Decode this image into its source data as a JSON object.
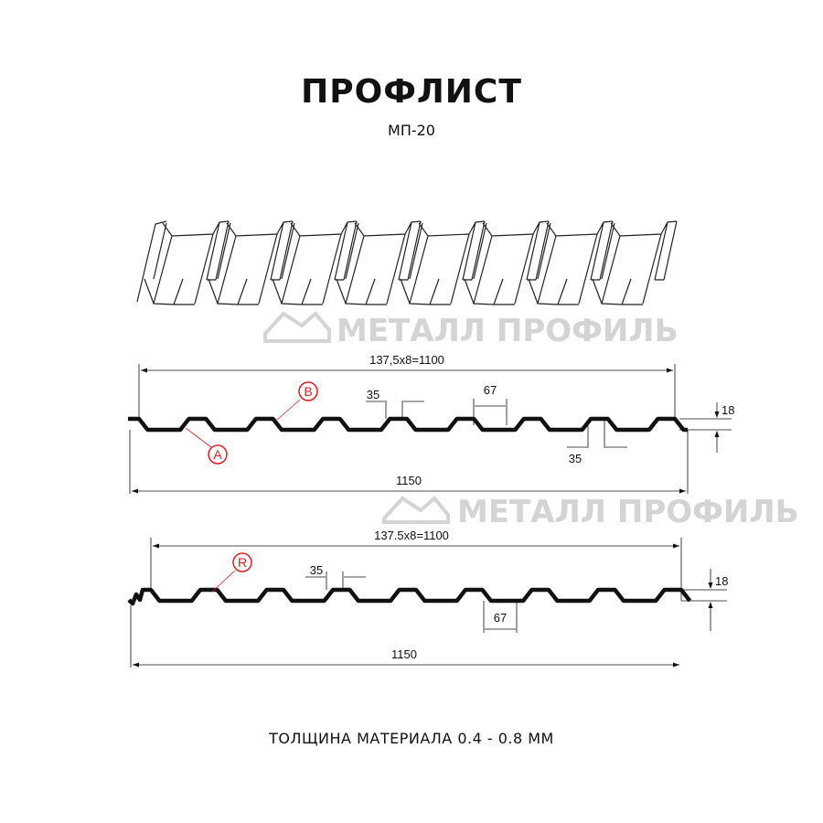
{
  "header": {
    "title": "ПРОФЛИСТ",
    "subtitle": "МП-20"
  },
  "watermark": {
    "text": "МЕТАЛЛ ПРОФИЛЬ"
  },
  "profile_a": {
    "pitch_label": "137,5x8=1100",
    "width_label": "1150",
    "height_label": "18",
    "top_width_label": "35",
    "bottom_width_label": "67",
    "top_width_label_2": "35",
    "markers": [
      "B",
      "A"
    ]
  },
  "profile_r": {
    "pitch_label": "137.5x8=1100",
    "width_label": "1150",
    "height_label": "18",
    "top_width_label": "35",
    "bottom_width_label": "67",
    "markers": [
      "R"
    ]
  },
  "footer": {
    "text": "ТОЛЩИНА МАТЕРИАЛА 0.4 - 0.8 ММ"
  },
  "colors": {
    "marker": "#e02020",
    "line": "#111111",
    "watermark": "#d4d4d4"
  }
}
